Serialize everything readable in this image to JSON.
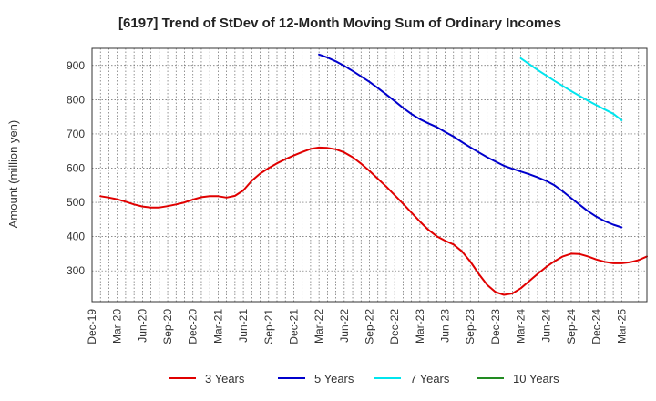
{
  "chart_data": {
    "type": "line",
    "title": "[6197]  Trend of StDev of 12-Month Moving Sum of Ordinary Incomes",
    "xlabel": "",
    "ylabel": "Amount (million yen)",
    "ylim": [
      210,
      950
    ],
    "yticks": [
      300,
      400,
      500,
      600,
      700,
      800,
      900
    ],
    "xticks": [
      "Dec-19",
      "Mar-20",
      "Jun-20",
      "Sep-20",
      "Dec-20",
      "Mar-21",
      "Jun-21",
      "Sep-21",
      "Dec-21",
      "Mar-22",
      "Jun-22",
      "Sep-22",
      "Dec-22",
      "Mar-23",
      "Jun-23",
      "Sep-23",
      "Dec-23",
      "Mar-24",
      "Jun-24",
      "Sep-24",
      "Dec-24",
      "Mar-25"
    ],
    "grid": true,
    "legend_position": "bottom",
    "series": [
      {
        "name": "3 Years",
        "color": "#e00000",
        "start_month_index": 1,
        "values": [
          518,
          514,
          509,
          502,
          494,
          488,
          485,
          485,
          489,
          494,
          500,
          508,
          515,
          518,
          518,
          514,
          519,
          535,
          563,
          584,
          600,
          614,
          626,
          637,
          647,
          656,
          660,
          659,
          655,
          646,
          632,
          613,
          592,
          569,
          546,
          521,
          496,
          470,
          444,
          420,
          401,
          388,
          377,
          357,
          327,
          291,
          259,
          238,
          230,
          234,
          249,
          270,
          291,
          311,
          328,
          342,
          350,
          349,
          342,
          333,
          326,
          322,
          322,
          325,
          331,
          342
        ]
      },
      {
        "name": "5 Years",
        "color": "#0000cc",
        "start_month_index": 27,
        "values": [
          932,
          923,
          912,
          899,
          884,
          868,
          852,
          834,
          815,
          796,
          776,
          758,
          743,
          731,
          720,
          706,
          692,
          676,
          661,
          646,
          632,
          619,
          607,
          598,
          590,
          582,
          573,
          563,
          550,
          532,
          512,
          493,
          474,
          458,
          445,
          435,
          427
        ]
      },
      {
        "name": "7 Years",
        "color": "#00e5ee",
        "start_month_index": 51,
        "values": [
          921,
          904,
          887,
          871,
          855,
          840,
          825,
          811,
          797,
          784,
          771,
          759,
          740
        ]
      },
      {
        "name": "10 Years",
        "color": "#228b22",
        "start_month_index": 0,
        "values": []
      }
    ]
  }
}
